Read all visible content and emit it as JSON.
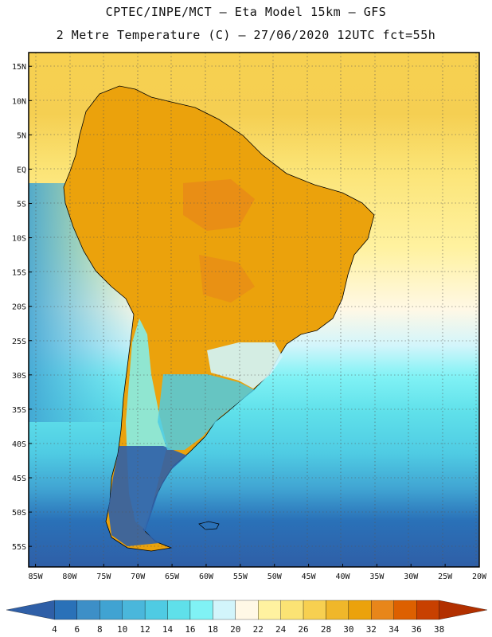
{
  "header": {
    "line1": "CPTEC/INPE/MCT –  Eta Model 15km – GFS",
    "line2": "2 Metre Temperature (C) – 27/06/2020 12UTC fct=55h"
  },
  "map": {
    "lat_labels": [
      "15N",
      "10N",
      "5N",
      "EQ",
      "5S",
      "10S",
      "15S",
      "20S",
      "25S",
      "30S",
      "35S",
      "40S",
      "45S",
      "50S",
      "55S"
    ],
    "lon_labels": [
      "85W",
      "80W",
      "75W",
      "70W",
      "65W",
      "60W",
      "55W",
      "50W",
      "45W",
      "40W",
      "35W",
      "30W",
      "25W",
      "20W"
    ],
    "lat_values": [
      15,
      10,
      5,
      0,
      -5,
      -10,
      -15,
      -20,
      -25,
      -30,
      -35,
      -40,
      -45,
      -50,
      -55
    ],
    "lon_values": [
      -85,
      -80,
      -75,
      -70,
      -65,
      -60,
      -55,
      -50,
      -45,
      -40,
      -35,
      -30,
      -25,
      -20
    ],
    "extent": {
      "lon_min": -86,
      "lon_max": -20,
      "lat_min": -58,
      "lat_max": 17
    }
  },
  "colorbar": {
    "labels": [
      "4",
      "6",
      "8",
      "10",
      "12",
      "14",
      "16",
      "18",
      "20",
      "22",
      "24",
      "26",
      "28",
      "30",
      "32",
      "34",
      "36",
      "38"
    ],
    "colors": [
      "#2f5fa7",
      "#2a71b8",
      "#3d8fc7",
      "#40a3d2",
      "#4ab7db",
      "#4fcbe3",
      "#5fe0ea",
      "#80f2f5",
      "#d2f5fb",
      "#fff8e6",
      "#fff2a0",
      "#fbe374",
      "#f7d050",
      "#f0b72a",
      "#eba20c",
      "#e8861a",
      "#dd6000",
      "#c84000",
      "#b23000"
    ]
  }
}
